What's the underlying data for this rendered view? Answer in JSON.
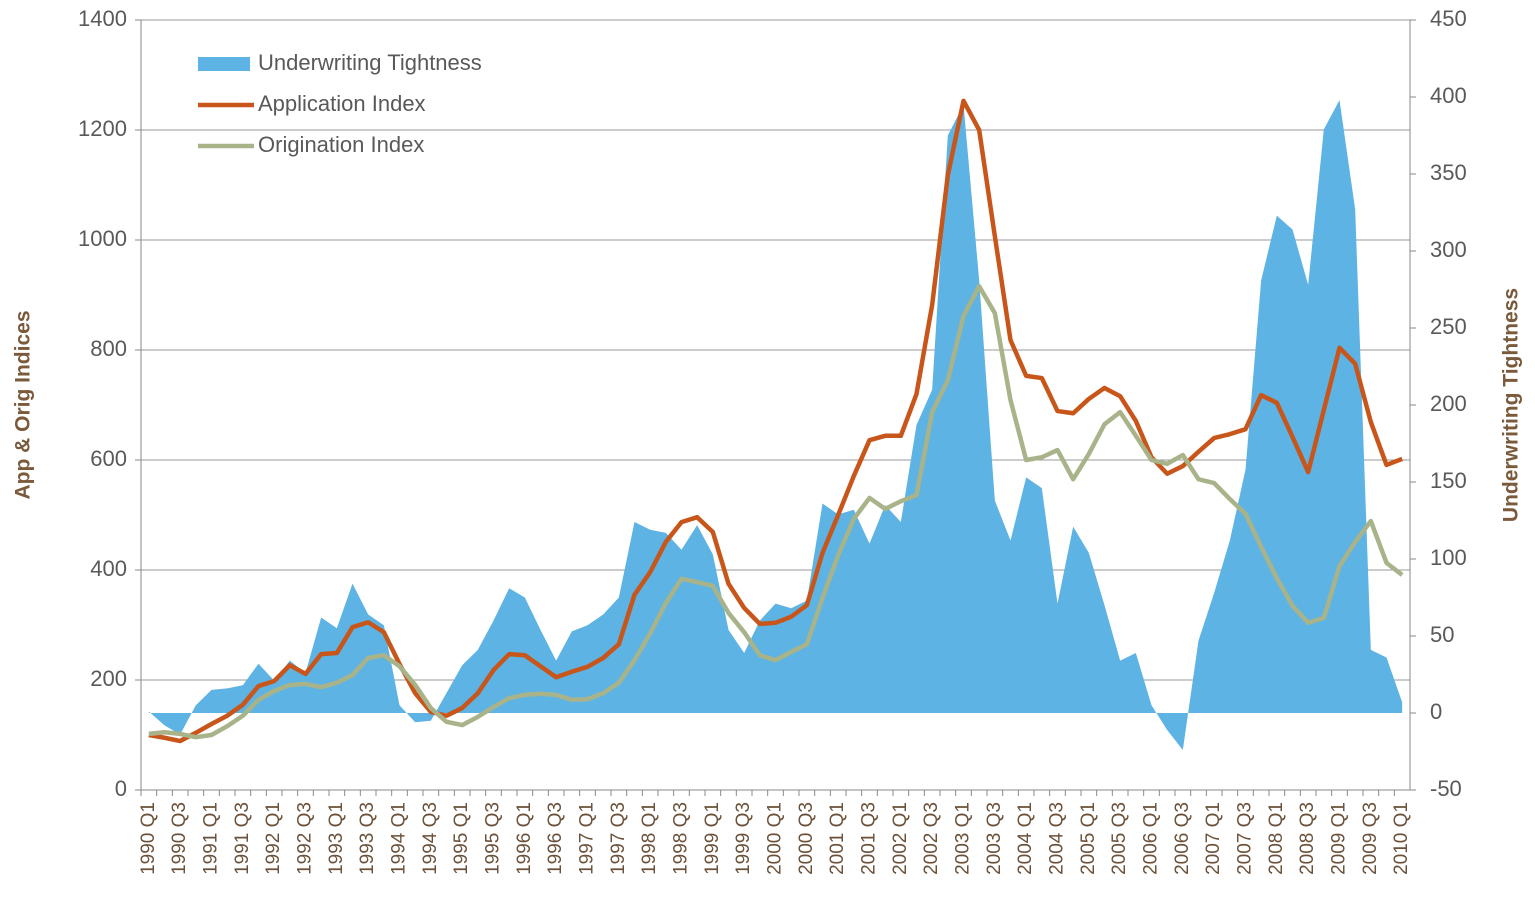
{
  "chart_data": {
    "type": "line",
    "y_label": "App & Orig Indices",
    "y2_label": "Underwriting Tightness",
    "categories": [
      "1990 Q1",
      null,
      "1990 Q3",
      null,
      "1991 Q1",
      null,
      "1991 Q3",
      null,
      "1992 Q1",
      null,
      "1992 Q3",
      null,
      "1993 Q1",
      null,
      "1993 Q3",
      null,
      "1994 Q1",
      null,
      "1994 Q3",
      null,
      "1995 Q1",
      null,
      "1995 Q3",
      null,
      "1996 Q1",
      null,
      "1996 Q3",
      null,
      "1997 Q1",
      null,
      "1997 Q3",
      null,
      "1998 Q1",
      null,
      "1998 Q3",
      null,
      "1999 Q1",
      null,
      "1999 Q3",
      null,
      "2000 Q1",
      null,
      "2000 Q3",
      null,
      "2001 Q1",
      null,
      "2001 Q3",
      null,
      "2002 Q1",
      null,
      "2002 Q3",
      null,
      "2003 Q1",
      null,
      "2003 Q3",
      null,
      "2004 Q1",
      null,
      "2004 Q3",
      null,
      "2005 Q1",
      null,
      "2005 Q3",
      null,
      "2006 Q1",
      null,
      "2006 Q3",
      null,
      "2007 Q1",
      null,
      "2007 Q3",
      null,
      "2008 Q1",
      null,
      "2008 Q3",
      null,
      "2009 Q1",
      null,
      "2009 Q3",
      null,
      "2010 Q1"
    ],
    "series": [
      {
        "name": "Underwriting Tightness",
        "type": "area",
        "axis": "y2",
        "color": "#5db3e4",
        "values": [
          1,
          -8,
          -14,
          5,
          15,
          16,
          18,
          32,
          21,
          34,
          26,
          62,
          55,
          84,
          64,
          57,
          5,
          -6,
          -5,
          13,
          31,
          41,
          60,
          81,
          75,
          54,
          34,
          53,
          57,
          64,
          75,
          124,
          119,
          117,
          106,
          122,
          103,
          54,
          39,
          60,
          71,
          68,
          73,
          136,
          129,
          132,
          110,
          135,
          124,
          187,
          210,
          375,
          395,
          281,
          138,
          112,
          153,
          146,
          71,
          121,
          104,
          70,
          34,
          39,
          5,
          -11,
          -24,
          47,
          78,
          112,
          158,
          281,
          323,
          314,
          278,
          379,
          398,
          327,
          41,
          36,
          7
        ]
      },
      {
        "name": "Application Index",
        "type": "line",
        "color": "#c8561a",
        "values": [
          100,
          95,
          89,
          104,
          120,
          135,
          155,
          189,
          198,
          227,
          211,
          247,
          249,
          296,
          305,
          287,
          229,
          176,
          142,
          135,
          149,
          176,
          218,
          247,
          245,
          225,
          205,
          215,
          224,
          240,
          265,
          355,
          396,
          451,
          487,
          496,
          469,
          375,
          331,
          302,
          304,
          315,
          336,
          431,
          500,
          571,
          636,
          644,
          644,
          720,
          882,
          1118,
          1253,
          1200,
          1007,
          818,
          753,
          749,
          689,
          685,
          711,
          731,
          716,
          671,
          605,
          575,
          589,
          615,
          640,
          647,
          656,
          718,
          704,
          642,
          578,
          691,
          804,
          775,
          669,
          591,
          602
        ]
      },
      {
        "name": "Origination Index",
        "type": "line",
        "color": "#a8b38a",
        "values": [
          102,
          105,
          102,
          96,
          100,
          116,
          135,
          164,
          180,
          191,
          193,
          187,
          195,
          209,
          240,
          245,
          225,
          191,
          149,
          124,
          118,
          133,
          151,
          167,
          173,
          175,
          173,
          164,
          165,
          176,
          195,
          236,
          285,
          340,
          384,
          378,
          371,
          322,
          287,
          245,
          236,
          251,
          265,
          349,
          427,
          493,
          531,
          511,
          525,
          536,
          687,
          745,
          862,
          916,
          867,
          709,
          600,
          605,
          618,
          565,
          611,
          665,
          687,
          644,
          600,
          593,
          609,
          565,
          558,
          529,
          502,
          442,
          385,
          335,
          304,
          313,
          407,
          451,
          489,
          413,
          391
        ]
      }
    ],
    "ylim": [
      0,
      1400
    ],
    "yticks": [
      0,
      200,
      400,
      600,
      800,
      1000,
      1200,
      1400
    ],
    "y2lim": [
      -50,
      450
    ],
    "y2ticks": [
      -50,
      0,
      50,
      100,
      150,
      200,
      250,
      300,
      350,
      400,
      450
    ],
    "grid": true,
    "legend": "upper left"
  }
}
